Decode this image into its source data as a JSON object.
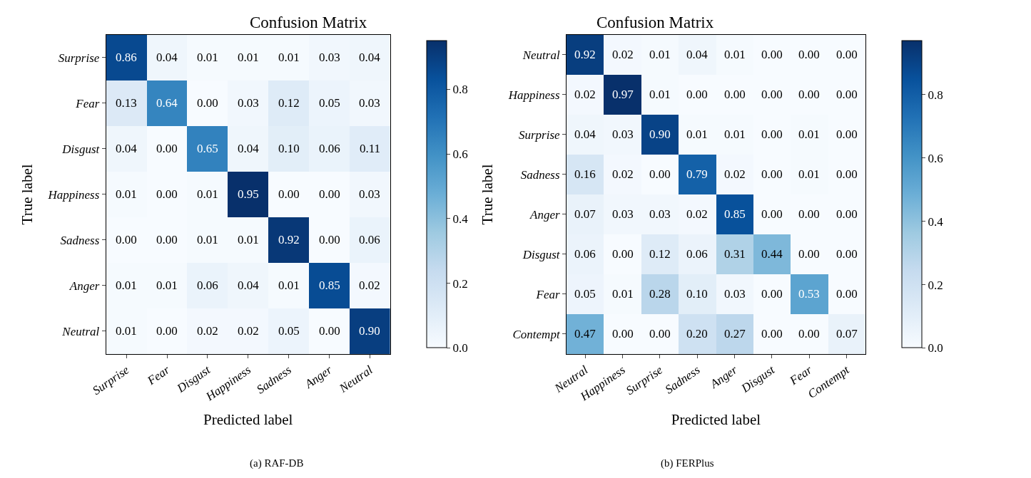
{
  "chart_data": [
    {
      "type": "heatmap",
      "title": "Confusion Matrix",
      "xlabel": "Predicted label",
      "ylabel": "True label",
      "categories": [
        "Surprise",
        "Fear",
        "Disgust",
        "Happiness",
        "Sadness",
        "Anger",
        "Neutral"
      ],
      "y_categories": [
        "Surprise",
        "Fear",
        "Disgust",
        "Happiness",
        "Sadness",
        "Anger",
        "Neutral"
      ],
      "cells": [
        [
          0.86,
          0.04,
          0.01,
          0.01,
          0.01,
          0.03,
          0.04
        ],
        [
          0.13,
          0.64,
          0.0,
          0.03,
          0.12,
          0.05,
          0.03
        ],
        [
          0.04,
          0.0,
          0.65,
          0.04,
          0.1,
          0.06,
          0.11
        ],
        [
          0.01,
          0.0,
          0.01,
          0.95,
          0.0,
          0.0,
          0.03
        ],
        [
          0.0,
          0.0,
          0.01,
          0.01,
          0.92,
          0.0,
          0.06
        ],
        [
          0.01,
          0.01,
          0.06,
          0.04,
          0.01,
          0.85,
          0.02
        ],
        [
          0.01,
          0.0,
          0.02,
          0.02,
          0.05,
          0.0,
          0.9
        ]
      ],
      "cell_labels": [
        [
          "0.86",
          "0.04",
          "0.01",
          "0.01",
          "0.01",
          "0.03",
          "0.04"
        ],
        [
          "0.13",
          "0.64",
          "0.00",
          "0.03",
          "0.12",
          "0.05",
          "0.03"
        ],
        [
          "0.04",
          "0.00",
          "0.65",
          "0.04",
          "0.10",
          "0.06",
          "0.11"
        ],
        [
          "0.01",
          "0.00",
          "0.01",
          "0.95",
          "0.00",
          "0.00",
          "0.03"
        ],
        [
          "0.00",
          "0.00",
          "0.01",
          "0.01",
          "0.92",
          "0.00",
          "0.06"
        ],
        [
          "0.01",
          "0.01",
          "0.06",
          "0.04",
          "0.01",
          "0.85",
          "0.02"
        ],
        [
          "0.01",
          "0.00",
          "0.02",
          "0.02",
          "0.05",
          "0.00",
          "0.90"
        ]
      ],
      "clim": [
        0,
        0.95
      ],
      "cticks": [
        {
          "value": 0,
          "label": "0.0"
        },
        {
          "value": 0.2,
          "label": "0.2"
        },
        {
          "value": 0.4,
          "label": "0.4"
        },
        {
          "value": 0.6,
          "label": "0.6"
        },
        {
          "value": 0.8,
          "label": "0.8"
        }
      ],
      "annotations": [
        "(a) RAF-DB"
      ]
    },
    {
      "type": "heatmap",
      "title": "Confusion Matrix",
      "xlabel": "Predicted label",
      "ylabel": "True label",
      "categories": [
        "Neutral",
        "Happiness",
        "Surprise",
        "Sadness",
        "Anger",
        "Disgust",
        "Fear",
        "Contempt"
      ],
      "y_categories": [
        "Neutral",
        "Happiness",
        "Surprise",
        "Sadness",
        "Anger",
        "Disgust",
        "Fear",
        "Contempt"
      ],
      "cells": [
        [
          0.92,
          0.02,
          0.01,
          0.04,
          0.01,
          0.0,
          0.0,
          0.0
        ],
        [
          0.02,
          0.97,
          0.01,
          0.0,
          0.0,
          0.0,
          0.0,
          0.0
        ],
        [
          0.04,
          0.03,
          0.9,
          0.01,
          0.01,
          0.0,
          0.01,
          0.0
        ],
        [
          0.16,
          0.02,
          0.0,
          0.79,
          0.02,
          0.0,
          0.01,
          0.0
        ],
        [
          0.07,
          0.03,
          0.03,
          0.02,
          0.85,
          0.0,
          0.0,
          0.0
        ],
        [
          0.06,
          0.0,
          0.12,
          0.06,
          0.31,
          0.44,
          0.0,
          0.0
        ],
        [
          0.05,
          0.01,
          0.28,
          0.1,
          0.03,
          0.0,
          0.53,
          0.0
        ],
        [
          0.47,
          0.0,
          0.0,
          0.2,
          0.27,
          0.0,
          0.0,
          0.07
        ]
      ],
      "cell_labels": [
        [
          "0.92",
          "0.02",
          "0.01",
          "0.04",
          "0.01",
          "0.00",
          "0.00",
          "0.00"
        ],
        [
          "0.02",
          "0.97",
          "0.01",
          "0.00",
          "0.00",
          "0.00",
          "0.00",
          "0.00"
        ],
        [
          "0.04",
          "0.03",
          "0.90",
          "0.01",
          "0.01",
          "0.00",
          "0.01",
          "0.00"
        ],
        [
          "0.16",
          "0.02",
          "0.00",
          "0.79",
          "0.02",
          "0.00",
          "0.01",
          "0.00"
        ],
        [
          "0.07",
          "0.03",
          "0.03",
          "0.02",
          "0.85",
          "0.00",
          "0.00",
          "0.00"
        ],
        [
          "0.06",
          "0.00",
          "0.12",
          "0.06",
          "0.31",
          "0.44",
          "0.00",
          "0.00"
        ],
        [
          "0.05",
          "0.01",
          "0.28",
          "0.10",
          "0.03",
          "0.00",
          "0.53",
          "0.00"
        ],
        [
          "0.47",
          "0.00",
          "0.00",
          "0.20",
          "0.27",
          "0.00",
          "0.00",
          "0.07"
        ]
      ],
      "clim": [
        0,
        0.97
      ],
      "cticks": [
        {
          "value": 0,
          "label": "0.0"
        },
        {
          "value": 0.2,
          "label": "0.2"
        },
        {
          "value": 0.4,
          "label": "0.4"
        },
        {
          "value": 0.6,
          "label": "0.6"
        },
        {
          "value": 0.8,
          "label": "0.8"
        }
      ],
      "annotations": [
        "(b) FERPlus"
      ]
    }
  ]
}
